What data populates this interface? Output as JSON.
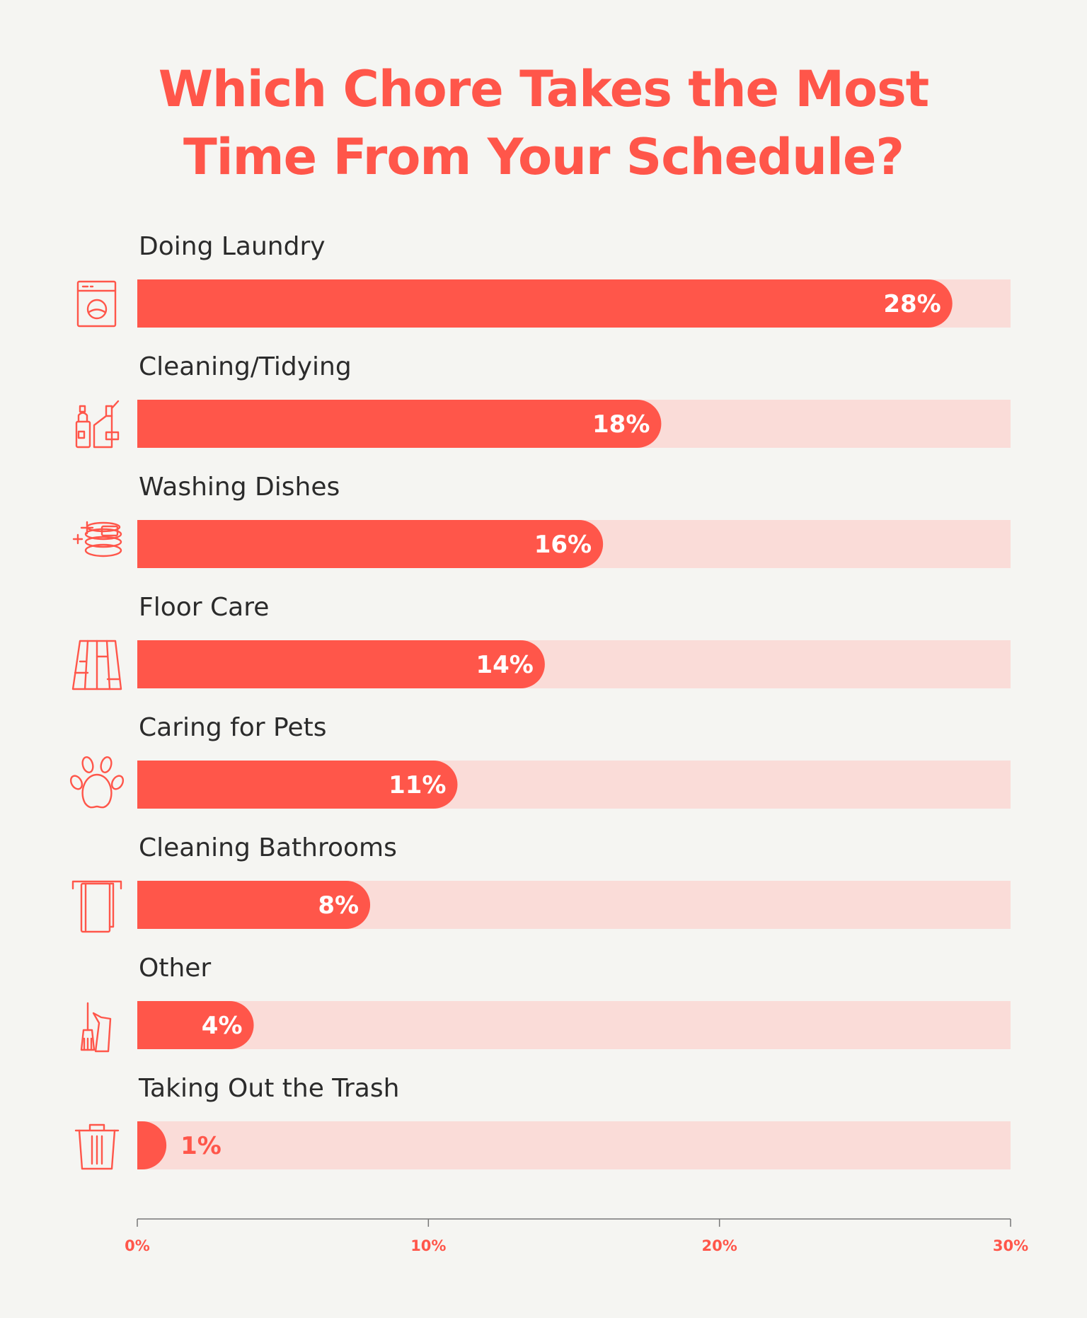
{
  "title_line1": "Which Chore Takes the Most",
  "title_line2": "Time From Your Schedule?",
  "colors": {
    "accent": "#ff564a",
    "track": "#fadcd8",
    "background": "#f5f5f2",
    "label": "#2b2b2b"
  },
  "chart_data": {
    "type": "bar",
    "orientation": "horizontal",
    "categories": [
      "Doing Laundry",
      "Cleaning/Tidying",
      "Washing Dishes",
      "Floor Care",
      "Caring for Pets",
      "Cleaning Bathrooms",
      "Other",
      "Taking Out the Trash"
    ],
    "values": [
      28,
      18,
      16,
      14,
      11,
      8,
      4,
      1
    ],
    "value_labels": [
      "28%",
      "18%",
      "16%",
      "14%",
      "11%",
      "8%",
      "4%",
      "1%"
    ],
    "icons": [
      "washing-machine-icon",
      "cleaning-bottles-icon",
      "sparkling-dishes-icon",
      "floor-boards-icon",
      "paw-print-icon",
      "towel-rack-icon",
      "broom-dustpan-icon",
      "trash-can-icon"
    ],
    "xlim": [
      0,
      30
    ],
    "xticks": [
      0,
      10,
      20,
      30
    ],
    "xtick_labels": [
      "0%",
      "10%",
      "20%",
      "30%"
    ],
    "grid": false,
    "legend": "none"
  }
}
